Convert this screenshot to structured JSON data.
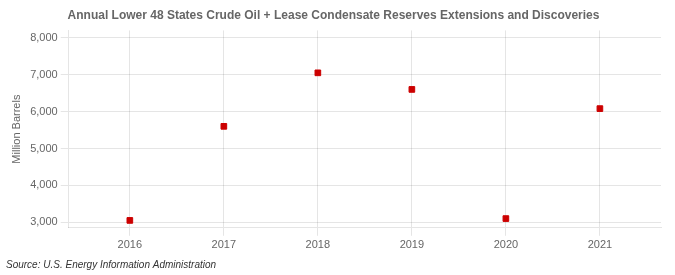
{
  "chart_data": {
    "type": "scatter",
    "title": "Annual Lower 48 States Crude Oil + Lease Condensate Reserves Extensions and Discoveries",
    "x": [
      2016,
      2017,
      2018,
      2019,
      2020,
      2021
    ],
    "values": [
      3050,
      5600,
      7050,
      6600,
      3100,
      6080
    ],
    "ylabel": "Million Barrels",
    "source": "Source: U.S. Energy Information Administration",
    "xlim": [
      2015.35,
      2021.65
    ],
    "xticks": [
      2016,
      2017,
      2018,
      2019,
      2020,
      2021
    ],
    "ylim": [
      2850,
      8200
    ],
    "yticks": [
      {
        "value": 3000,
        "label": "3,000"
      },
      {
        "value": 4000,
        "label": "4,000"
      },
      {
        "value": 5000,
        "label": "5,000"
      },
      {
        "value": 6000,
        "label": "6,000"
      },
      {
        "value": 7000,
        "label": "7,000"
      },
      {
        "value": 8000,
        "label": "8,000"
      }
    ],
    "color": "#cc0000",
    "marker": "square",
    "grid": true
  }
}
